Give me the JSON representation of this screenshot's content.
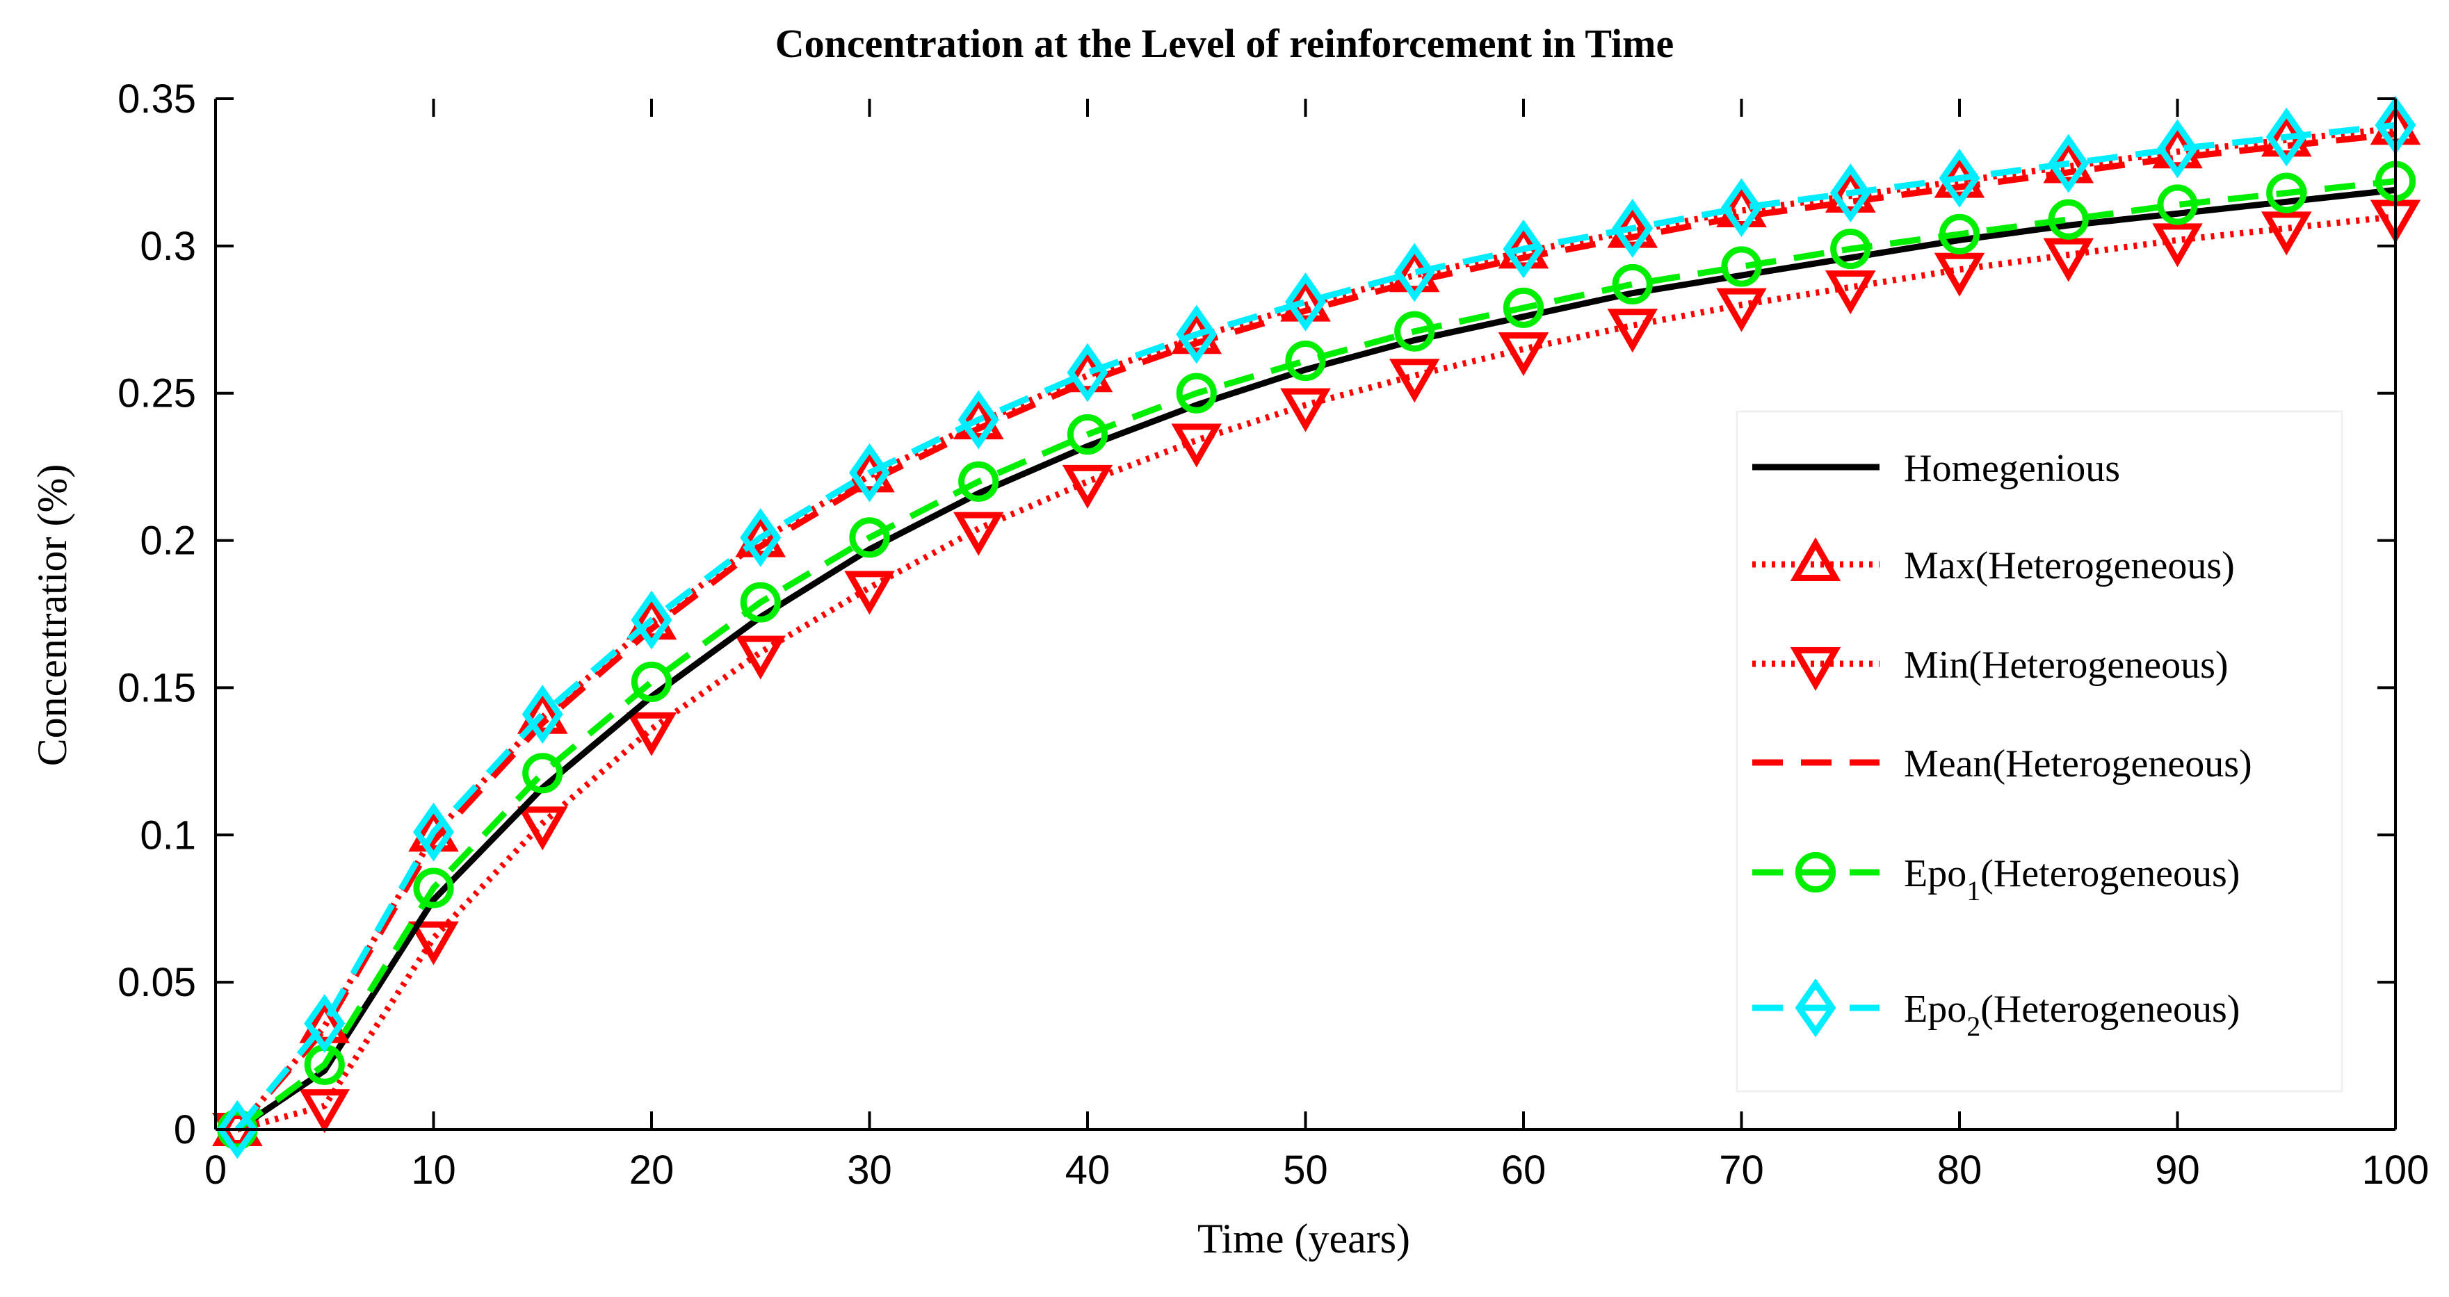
{
  "chart_data": {
    "type": "line",
    "title": "Concentration at the Level of reinforcement in Time",
    "xlabel": "Time (years)",
    "ylabel": "Concentratior (%)",
    "xlim": [
      0,
      100
    ],
    "ylim": [
      0,
      0.35
    ],
    "xticks": [
      0,
      10,
      20,
      30,
      40,
      50,
      60,
      70,
      80,
      90,
      100
    ],
    "yticks": [
      0,
      0.05,
      0.1,
      0.15,
      0.2,
      0.25,
      0.3,
      0.35
    ],
    "xtick_labels": [
      "0",
      "10",
      "20",
      "30",
      "40",
      "50",
      "60",
      "70",
      "80",
      "90",
      "100"
    ],
    "ytick_labels": [
      "0",
      "0.05",
      "0.1",
      "0.15",
      "0.2",
      "0.25",
      "0.3",
      "0.35"
    ],
    "grid": false,
    "legend_position": "right",
    "x": [
      1,
      5,
      10,
      15,
      20,
      25,
      30,
      35,
      40,
      45,
      50,
      55,
      60,
      65,
      70,
      75,
      80,
      85,
      90,
      95,
      100
    ],
    "series": [
      {
        "name": "Homegenious",
        "color": "#000000",
        "line": "solid",
        "marker": "none",
        "values": [
          0.0,
          0.02,
          0.078,
          0.116,
          0.147,
          0.174,
          0.197,
          0.216,
          0.232,
          0.246,
          0.258,
          0.268,
          0.276,
          0.284,
          0.29,
          0.296,
          0.302,
          0.307,
          0.311,
          0.315,
          0.319
        ]
      },
      {
        "name": "Max(Heterogeneous)",
        "color": "#ff0000",
        "line": "dotted",
        "marker": "triangle-up",
        "values": [
          0.0,
          0.035,
          0.1,
          0.14,
          0.172,
          0.2,
          0.222,
          0.24,
          0.256,
          0.269,
          0.28,
          0.29,
          0.298,
          0.305,
          0.312,
          0.317,
          0.322,
          0.327,
          0.332,
          0.336,
          0.34
        ]
      },
      {
        "name": "Min(Heterogeneous)",
        "color": "#ff0000",
        "line": "dotted",
        "marker": "triangle-down",
        "values": [
          0.0,
          0.008,
          0.065,
          0.104,
          0.136,
          0.162,
          0.184,
          0.204,
          0.22,
          0.234,
          0.246,
          0.256,
          0.265,
          0.273,
          0.28,
          0.286,
          0.292,
          0.297,
          0.302,
          0.306,
          0.31
        ]
      },
      {
        "name": "Mean(Heterogeneous)",
        "color": "#ff0000",
        "line": "dashed",
        "marker": "none",
        "values": [
          0.0,
          0.034,
          0.098,
          0.138,
          0.17,
          0.198,
          0.22,
          0.238,
          0.254,
          0.267,
          0.278,
          0.288,
          0.296,
          0.303,
          0.31,
          0.315,
          0.32,
          0.325,
          0.33,
          0.334,
          0.338
        ]
      },
      {
        "name": "Epo1(Heterogeneous)",
        "name_base": "Epo",
        "name_sub": "1",
        "name_rest": "(Heterogeneous)",
        "color": "#00ee00",
        "line": "dashed",
        "marker": "circle",
        "values": [
          0.0,
          0.022,
          0.082,
          0.121,
          0.152,
          0.179,
          0.201,
          0.22,
          0.236,
          0.25,
          0.261,
          0.271,
          0.279,
          0.287,
          0.293,
          0.299,
          0.304,
          0.309,
          0.314,
          0.318,
          0.322
        ]
      },
      {
        "name": "Epo2(Heterogeneous)",
        "name_base": "Epo",
        "name_sub": "2",
        "name_rest": "(Heterogeneous)",
        "color": "#00eeff",
        "line": "dashed",
        "marker": "diamond",
        "values": [
          0.0,
          0.036,
          0.101,
          0.141,
          0.173,
          0.201,
          0.223,
          0.241,
          0.257,
          0.27,
          0.281,
          0.291,
          0.299,
          0.306,
          0.313,
          0.318,
          0.323,
          0.328,
          0.333,
          0.337,
          0.341
        ]
      }
    ]
  }
}
